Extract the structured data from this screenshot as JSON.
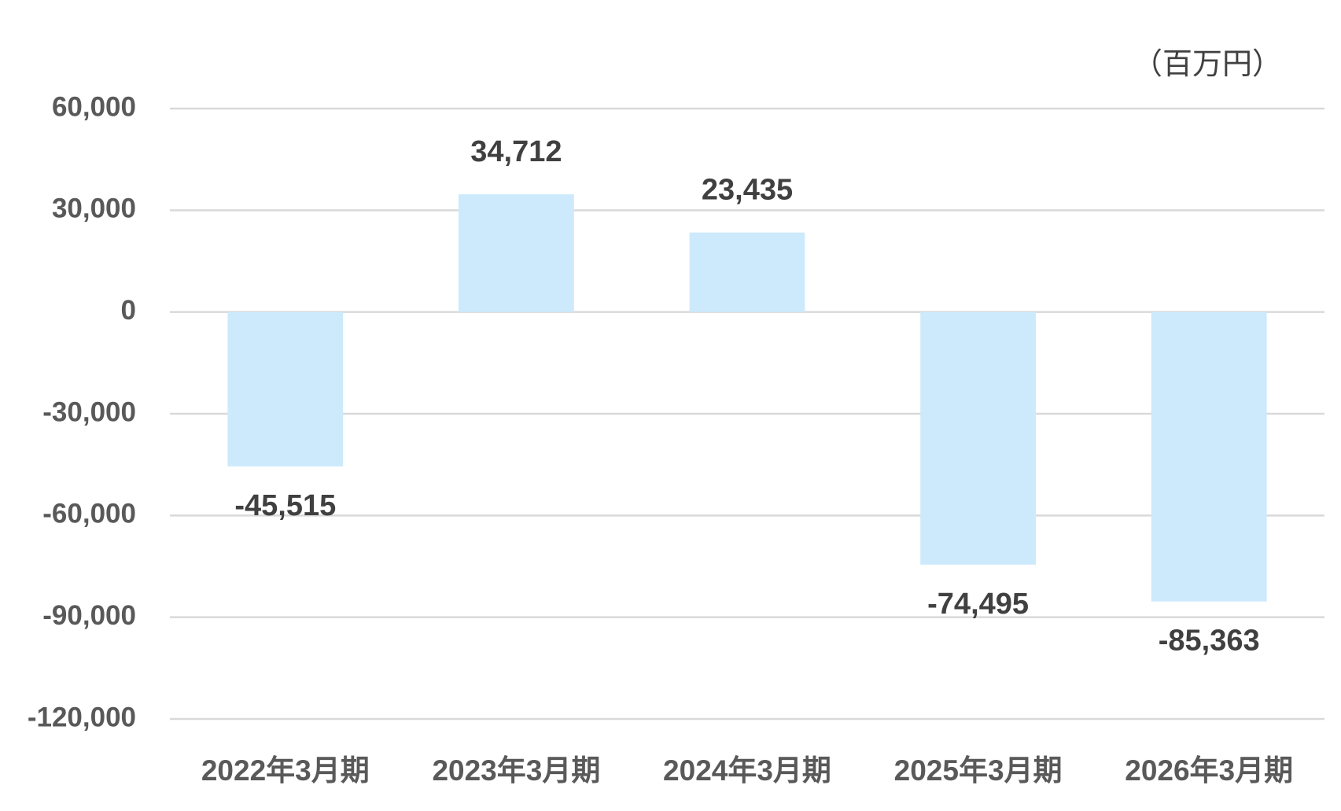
{
  "chart_data": {
    "type": "bar",
    "unit_label": "（百万円）",
    "categories": [
      "2022年3月期",
      "2023年3月期",
      "2024年3月期",
      "2025年3月期",
      "2026年3月期"
    ],
    "values": [
      -45515,
      34712,
      23435,
      -74495,
      -85363
    ],
    "value_labels": [
      "-45,515",
      "34,712",
      "23,435",
      "-74,495",
      "-85,363"
    ],
    "color": "#cdeafc",
    "ylim": [
      -120000,
      60000
    ],
    "yticks": [
      {
        "value": -120000,
        "label": "-120,000"
      },
      {
        "value": -90000,
        "label": "-90,000"
      },
      {
        "value": -60000,
        "label": "-60,000"
      },
      {
        "value": -30000,
        "label": "-30,000"
      },
      0,
      {
        "value": 30000,
        "label": "30,000"
      },
      {
        "value": 60000,
        "label": "60,000"
      }
    ],
    "grid": true
  }
}
